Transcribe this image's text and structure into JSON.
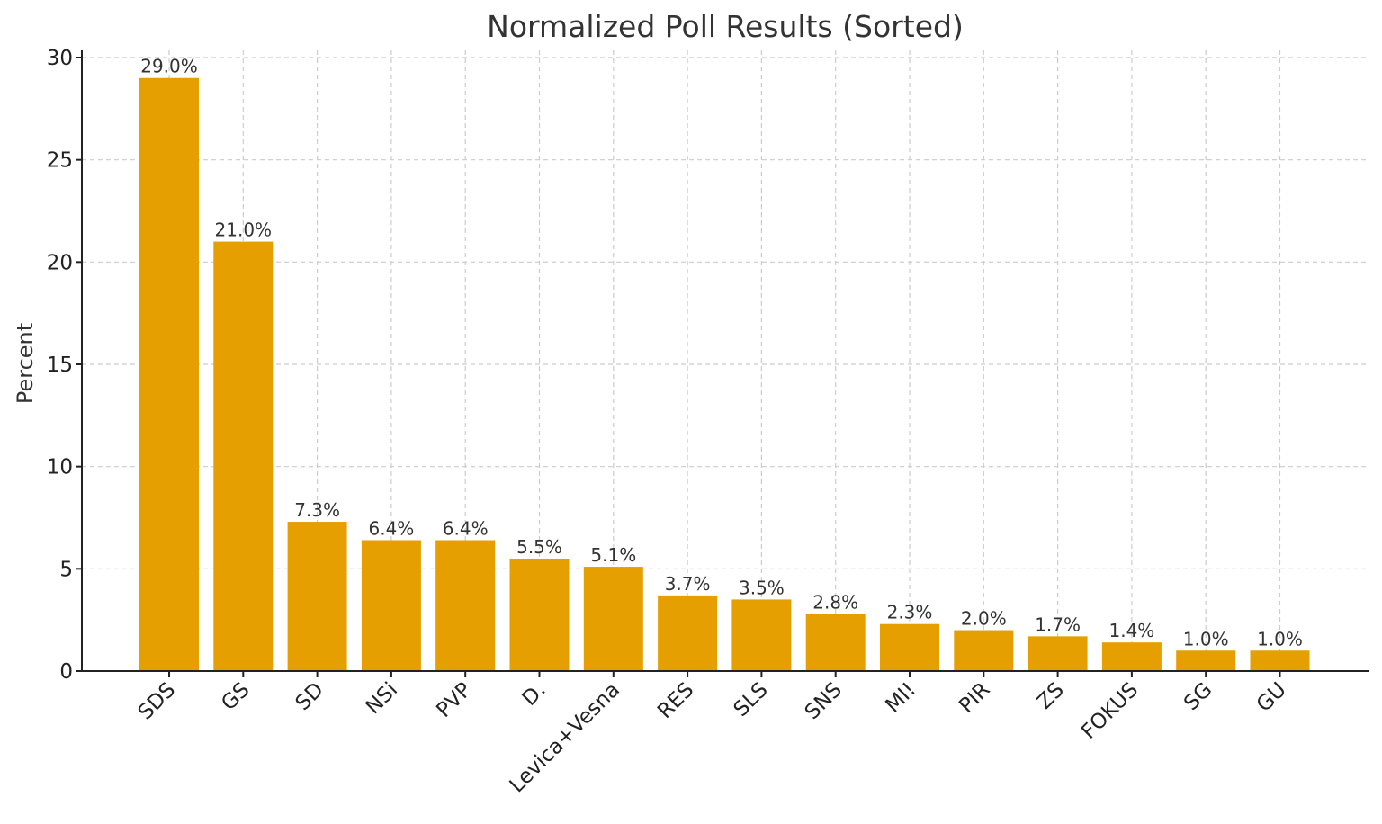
{
  "chart_data": {
    "type": "bar",
    "title": "Normalized Poll Results (Sorted)",
    "xlabel": "",
    "ylabel": "Percent",
    "categories": [
      "SDS",
      "GS",
      "SD",
      "NSi",
      "PVP",
      "D.",
      "Levica+Vesna",
      "RES",
      "SLS",
      "SNS",
      "MI!",
      "PIR",
      "ZS",
      "FOKUS",
      "SG",
      "GU"
    ],
    "values": [
      29.0,
      21.0,
      7.3,
      6.4,
      6.4,
      5.5,
      5.1,
      3.7,
      3.5,
      2.8,
      2.3,
      2.0,
      1.7,
      1.4,
      1.0,
      1.0
    ],
    "data_labels": [
      "29.0%",
      "21.0%",
      "7.3%",
      "6.4%",
      "6.4%",
      "5.5%",
      "5.1%",
      "3.7%",
      "3.5%",
      "2.8%",
      "2.3%",
      "2.0%",
      "1.7%",
      "1.4%",
      "1.0%",
      "1.0%"
    ],
    "ylim": [
      0,
      30
    ],
    "yticks": [
      0,
      5,
      10,
      15,
      20,
      25,
      30
    ],
    "ytick_labels": [
      "0",
      "5",
      "10",
      "15",
      "20",
      "25",
      "30"
    ],
    "grid": true,
    "bar_color": "#E69F00"
  }
}
